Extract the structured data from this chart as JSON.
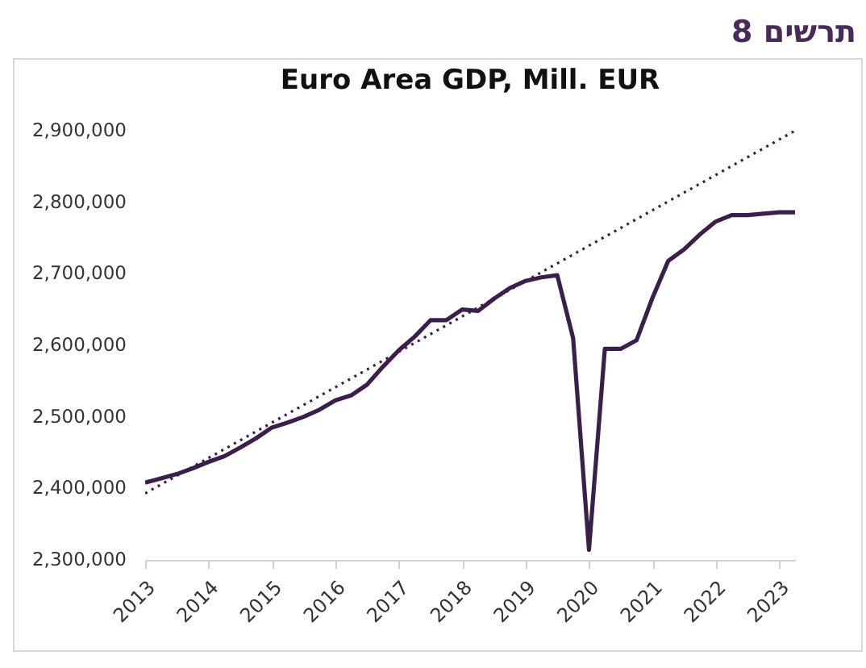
{
  "chart_data": {
    "type": "line",
    "title": "Euro Area GDP, Mill. EUR",
    "annotations": [
      "תרשים 8"
    ],
    "x": [
      2013,
      2013.25,
      2013.5,
      2013.75,
      2014,
      2014.25,
      2014.5,
      2014.75,
      2015,
      2015.25,
      2015.5,
      2015.75,
      2016,
      2016.25,
      2016.5,
      2016.75,
      2017,
      2017.25,
      2017.5,
      2017.75,
      2018,
      2018.25,
      2018.5,
      2018.75,
      2019,
      2019.25,
      2019.5,
      2019.75,
      2020,
      2020.25,
      2020.5,
      2020.75,
      2021,
      2021.25,
      2021.5,
      2021.75,
      2022,
      2022.25,
      2022.5,
      2022.75,
      2023,
      2023.25
    ],
    "series": [
      {
        "color": "#3b1f4a",
        "values": [
          2408000,
          2414000,
          2420000,
          2428000,
          2437000,
          2445000,
          2457000,
          2470000,
          2485000,
          2492000,
          2500000,
          2510000,
          2523000,
          2530000,
          2545000,
          2570000,
          2593000,
          2612000,
          2635000,
          2635000,
          2650000,
          2648000,
          2665000,
          2680000,
          2690000,
          2695000,
          2698000,
          2610000,
          2314000,
          2595000,
          2595000,
          2607000,
          2666000,
          2718000,
          2734000,
          2755000,
          2773000,
          2782000,
          2782000,
          2784000,
          2786000,
          2786000
        ]
      },
      {
        "type": "line",
        "color": "#3b1f4a",
        "line_style": "dotted",
        "x": [
          2013,
          2023.25
        ],
        "values": [
          2393000,
          2900000
        ]
      }
    ],
    "xlim": [
      2013,
      2023.25
    ],
    "xticks": [
      2013,
      2014,
      2015,
      2016,
      2017,
      2018,
      2019,
      2020,
      2021,
      2022,
      2023
    ],
    "ylim": [
      2300000,
      2900000
    ],
    "yticks": [
      {
        "value": 2300000,
        "label": "2,300,000"
      },
      {
        "value": 2400000,
        "label": "2,400,000"
      },
      {
        "value": 2500000,
        "label": "2,500,000"
      },
      {
        "value": 2600000,
        "label": "2,600,000"
      },
      {
        "value": 2700000,
        "label": "2,700,000"
      },
      {
        "value": 2800000,
        "label": "2,800,000"
      },
      {
        "value": 2900000,
        "label": "2,900,000"
      }
    ],
    "line_style": "solid",
    "grid": false
  }
}
